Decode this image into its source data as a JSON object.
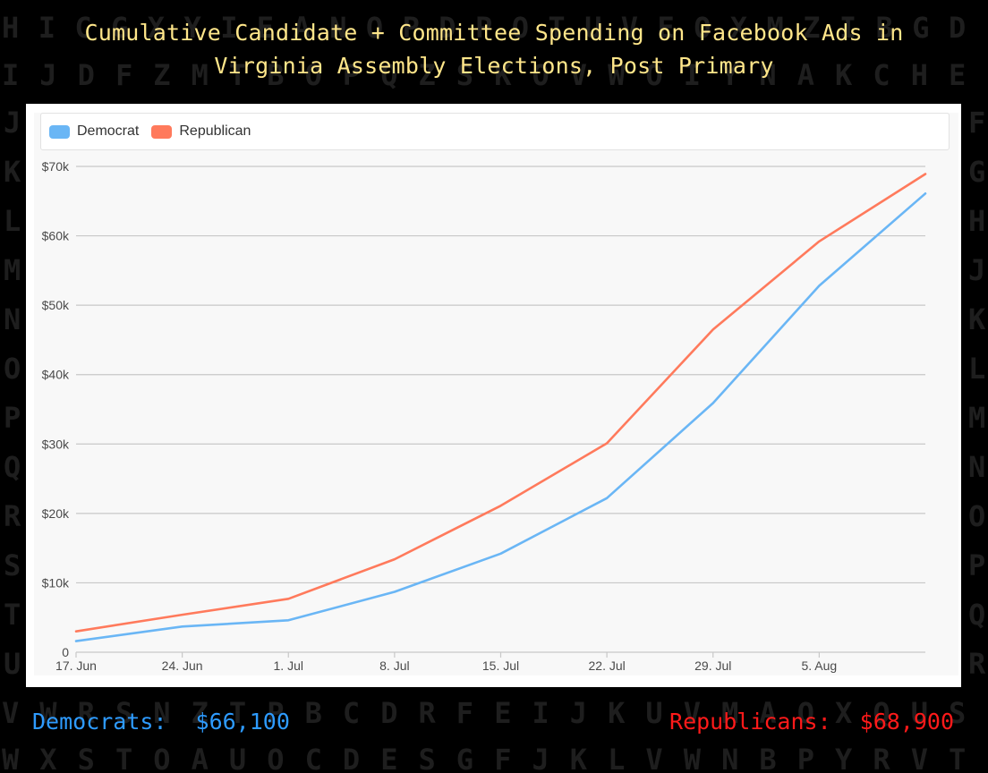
{
  "title_lines": [
    "Cumulative Candidate + Committee Spending on Facebook Ads in",
    "Virginia Assembly Elections, Post Primary"
  ],
  "background_letters": [
    "HICGXYIEANOPDPOTUVEOXMZIBGD",
    "IJDFZMTBOPQZSKOVWOIYNAKCHE",
    "JF",
    "KG",
    "LH",
    "MJ",
    "NK",
    "OL",
    "PM",
    "QN",
    "RO",
    "SP",
    "TQ",
    "UR",
    "VWRSNZTPBCDRFEIJKUVMAOXQUS",
    "WXSTOAUOCDESGFJKLVWNBPYRVT"
  ],
  "colors": {
    "background": "#000000",
    "title": "#ffe68a",
    "democrat": "#6ab6f5",
    "republican": "#ff7a5c",
    "democrat_total": "#2e9bff",
    "republican_total": "#ff1a1a",
    "gridline": "#c8c8c8",
    "plot_background": "#f8f8f8"
  },
  "totals": {
    "democrat_label": "Democrats:",
    "democrat_value": "$66,100",
    "republican_label": "Republicans:",
    "republican_value": "$68,900"
  },
  "chart_data": {
    "type": "line",
    "title": "Cumulative Candidate + Committee Spending on Facebook Ads in Virginia Assembly Elections, Post Primary",
    "xlabel": "",
    "ylabel": "",
    "x": [
      "2019-06-17",
      "2019-06-24",
      "2019-07-01",
      "2019-07-08",
      "2019-07-15",
      "2019-07-22",
      "2019-07-29",
      "2019-08-05",
      "2019-08-12"
    ],
    "x_tick_labels": [
      "17. Jun",
      "24. Jun",
      "1. Jul",
      "8. Jul",
      "15. Jul",
      "22. Jul",
      "29. Jul",
      "5. Aug"
    ],
    "y_ticks": [
      0,
      10000,
      20000,
      30000,
      40000,
      50000,
      60000,
      70000
    ],
    "y_tick_labels": [
      "0",
      "$10k",
      "$20k",
      "$30k",
      "$40k",
      "$50k",
      "$60k",
      "$70k"
    ],
    "ylim": [
      0,
      70000
    ],
    "series": [
      {
        "name": "Democrat",
        "color": "#6ab6f5",
        "values": [
          1600,
          3700,
          4600,
          8700,
          14200,
          22200,
          35900,
          52800,
          66100
        ]
      },
      {
        "name": "Republican",
        "color": "#ff7a5c",
        "values": [
          3000,
          5400,
          7700,
          13400,
          21100,
          30100,
          46500,
          59200,
          68900
        ]
      }
    ],
    "grid": true,
    "legend": "top-left"
  }
}
